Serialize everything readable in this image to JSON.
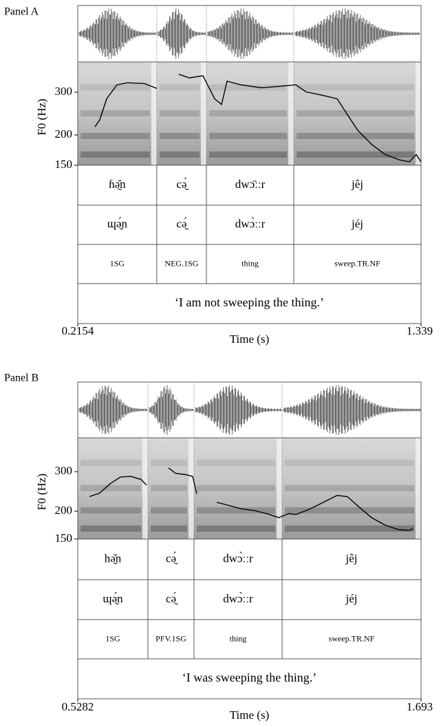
{
  "chart_data": [
    {
      "type": "line",
      "title": "Panel A",
      "ylabel": "F0 (Hz)",
      "xlabel": "Time (s)",
      "xlim": [
        0.2154,
        1.339
      ],
      "xticks": [
        0.2154,
        1.339
      ],
      "ylim": [
        150,
        400
      ],
      "yticks": [
        150,
        200,
        300
      ],
      "log_y": true,
      "color": "#000000",
      "x": [
        0.2717,
        0.2875,
        0.31,
        0.3438,
        0.3775,
        0.4338,
        0.4744,
        0.5,
        0.5464,
        0.5802,
        0.6252,
        0.6635,
        0.686,
        0.704,
        0.7491,
        0.8166,
        0.8842,
        0.9292,
        0.963,
        1.0193,
        1.0643,
        1.0868,
        1.1318,
        1.1769,
        1.2219,
        1.2669,
        1.3007,
        1.3232,
        1.339
      ],
      "values": [
        216,
        231,
        282,
        322,
        328,
        326,
        311,
        null,
        356,
        344,
        351,
        282,
        267,
        333,
        322,
        313,
        318,
        322,
        301,
        291,
        282,
        255,
        209,
        183,
        166,
        158,
        155,
        166,
        155
      ],
      "boundaries": [
        0.474,
        0.6365,
        0.9225
      ],
      "tiers": [
        [
          "ɦə̰̆n",
          "cə̰́",
          "dwɔ̄ːːr",
          "jêj"
        ],
        [
          "ɰə̰́n",
          "cə̰́",
          "dwɔ̀ːːr",
          "jéj"
        ],
        [
          "1SG",
          "NEG.1SG",
          "thing",
          "sweep.TR.NF"
        ],
        [
          "‘I am not sweeping the thing.’"
        ]
      ]
    },
    {
      "type": "line",
      "title": "Panel B",
      "ylabel": "F0 (Hz)",
      "xlabel": "Time (s)",
      "xlim": [
        0.5282,
        1.693
      ],
      "xticks": [
        0.5282,
        1.693
      ],
      "ylim": [
        150,
        425
      ],
      "yticks": [
        150,
        200,
        300
      ],
      "log_y": true,
      "color": "#000000",
      "x": [
        0.5679,
        0.6029,
        0.6379,
        0.6729,
        0.7079,
        0.743,
        0.7616,
        0.8,
        0.8363,
        0.8597,
        0.8947,
        0.918,
        0.932,
        0.96,
        1.0,
        1.0347,
        1.0814,
        1.1281,
        1.1748,
        1.2098,
        1.2448,
        1.2682,
        1.3149,
        1.3615,
        1.4082,
        1.4432,
        1.4782,
        1.5249,
        1.5716,
        1.6183,
        1.6533,
        1.665
      ],
      "values": [
        232,
        241,
        265,
        284,
        286,
        277,
        261,
        null,
        312,
        295,
        291,
        286,
        239,
        null,
        219,
        213,
        205,
        201,
        194,
        187,
        195,
        193,
        204,
        219,
        235,
        232,
        211,
        187,
        173,
        165,
        164,
        167
      ],
      "boundaries": [
        0.7663,
        0.9227,
        1.2215
      ],
      "tiers": [
        [
          "hə̰̆n",
          "cə̰́",
          "dwɔ̀ːːr",
          "jêj"
        ],
        [
          "ɰə̰́n",
          "cə̰́",
          "dwɔ̀ːːr",
          "jéj"
        ],
        [
          "1SG",
          "PFV.1SG",
          "thing",
          "sweep.TR.NF"
        ],
        [
          "‘I was sweeping the thing.’"
        ]
      ]
    }
  ]
}
